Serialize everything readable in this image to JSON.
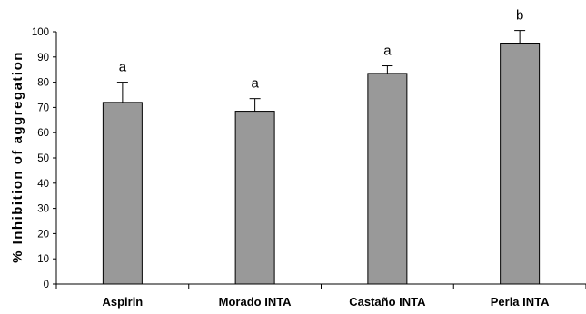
{
  "chart_data": {
    "type": "bar",
    "categories": [
      "Aspirin",
      "Morado INTA",
      "Castaño INTA",
      "Perla INTA"
    ],
    "values": [
      72,
      68.5,
      83.5,
      95.5
    ],
    "errors": [
      8,
      5,
      3,
      5
    ],
    "significance": [
      "a",
      "a",
      "a",
      "b"
    ],
    "ylabel": "% Inhibition of aggregation",
    "ylim": [
      0,
      100
    ],
    "yticks": [
      0,
      10,
      20,
      30,
      40,
      50,
      60,
      70,
      80,
      90,
      100
    ],
    "bar_color": "#999999",
    "grid": false,
    "legend": "none"
  }
}
